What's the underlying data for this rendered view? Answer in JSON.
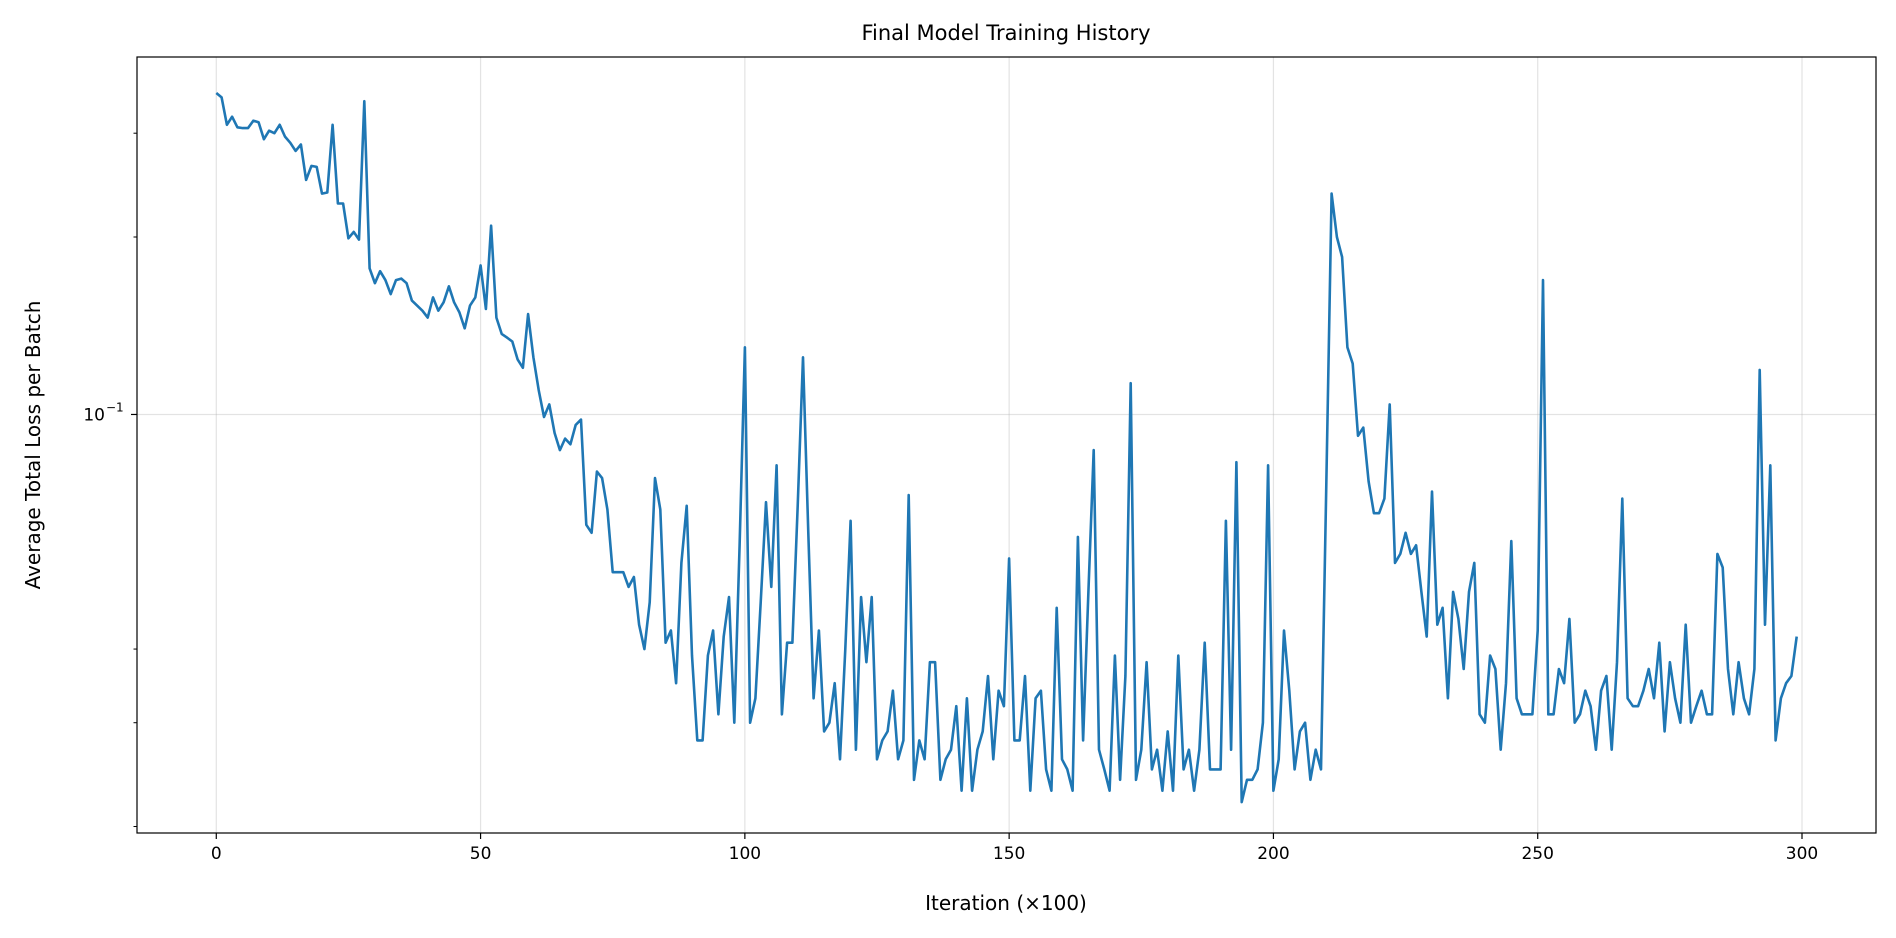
{
  "chart_data": {
    "type": "line",
    "title": "Final Model Training History",
    "xlabel": "Iteration (×100)",
    "ylabel": "Average Total Loss per Batch",
    "xlim": [
      -15,
      314
    ],
    "ylim": [
      0.0195,
      0.404
    ],
    "yscale": "log",
    "grid": true,
    "x_ticks": [
      0,
      50,
      100,
      150,
      200,
      250,
      300
    ],
    "x_tick_labels": [
      "0",
      "50",
      "100",
      "150",
      "200",
      "250",
      "300"
    ],
    "y_major_ticks": [
      {
        "value": 0.1,
        "base": "10",
        "exp": "−1"
      }
    ],
    "y_minor_ticks": [
      0.02,
      0.03,
      0.04,
      0.2,
      0.3
    ],
    "line_color": "#1f77b4",
    "series": [
      {
        "name": "loss",
        "x_start": 0,
        "x_step": 1,
        "values": [
          0.351,
          0.345,
          0.31,
          0.32,
          0.307,
          0.306,
          0.306,
          0.315,
          0.313,
          0.293,
          0.303,
          0.3,
          0.31,
          0.296,
          0.289,
          0.28,
          0.287,
          0.25,
          0.264,
          0.263,
          0.237,
          0.238,
          0.31,
          0.228,
          0.228,
          0.199,
          0.204,
          0.198,
          0.34,
          0.177,
          0.167,
          0.175,
          0.169,
          0.16,
          0.169,
          0.17,
          0.167,
          0.156,
          0.153,
          0.15,
          0.146,
          0.158,
          0.15,
          0.155,
          0.165,
          0.155,
          0.149,
          0.14,
          0.153,
          0.158,
          0.179,
          0.151,
          0.209,
          0.146,
          0.137,
          0.135,
          0.133,
          0.124,
          0.12,
          0.148,
          0.125,
          0.11,
          0.099,
          0.104,
          0.093,
          0.087,
          0.091,
          0.089,
          0.096,
          0.098,
          0.065,
          0.063,
          0.08,
          0.078,
          0.069,
          0.054,
          0.054,
          0.054,
          0.051,
          0.053,
          0.044,
          0.04,
          0.048,
          0.078,
          0.069,
          0.041,
          0.043,
          0.035,
          0.056,
          0.07,
          0.039,
          0.028,
          0.028,
          0.039,
          0.043,
          0.031,
          0.042,
          0.049,
          0.03,
          0.06,
          0.13,
          0.03,
          0.033,
          0.048,
          0.071,
          0.051,
          0.082,
          0.031,
          0.041,
          0.041,
          0.07,
          0.125,
          0.063,
          0.033,
          0.043,
          0.029,
          0.03,
          0.035,
          0.026,
          0.04,
          0.066,
          0.027,
          0.049,
          0.038,
          0.049,
          0.026,
          0.028,
          0.029,
          0.034,
          0.026,
          0.028,
          0.073,
          0.024,
          0.028,
          0.026,
          0.038,
          0.038,
          0.024,
          0.026,
          0.027,
          0.032,
          0.023,
          0.033,
          0.023,
          0.027,
          0.029,
          0.036,
          0.026,
          0.034,
          0.032,
          0.057,
          0.028,
          0.028,
          0.036,
          0.023,
          0.033,
          0.034,
          0.025,
          0.023,
          0.047,
          0.026,
          0.025,
          0.023,
          0.062,
          0.028,
          0.05,
          0.087,
          0.027,
          0.025,
          0.023,
          0.039,
          0.024,
          0.036,
          0.113,
          0.024,
          0.027,
          0.038,
          0.025,
          0.027,
          0.023,
          0.029,
          0.023,
          0.039,
          0.025,
          0.027,
          0.023,
          0.027,
          0.041,
          0.025,
          0.025,
          0.025,
          0.066,
          0.027,
          0.083,
          0.022,
          0.024,
          0.024,
          0.025,
          0.03,
          0.082,
          0.023,
          0.026,
          0.043,
          0.034,
          0.025,
          0.029,
          0.03,
          0.024,
          0.027,
          0.025,
          0.076,
          0.237,
          0.2,
          0.185,
          0.13,
          0.122,
          0.092,
          0.095,
          0.077,
          0.068,
          0.068,
          0.072,
          0.104,
          0.056,
          0.058,
          0.063,
          0.058,
          0.06,
          0.05,
          0.042,
          0.074,
          0.044,
          0.047,
          0.033,
          0.05,
          0.045,
          0.037,
          0.05,
          0.056,
          0.031,
          0.03,
          0.039,
          0.037,
          0.027,
          0.035,
          0.061,
          0.033,
          0.031,
          0.031,
          0.031,
          0.043,
          0.169,
          0.031,
          0.031,
          0.037,
          0.035,
          0.045,
          0.03,
          0.031,
          0.034,
          0.032,
          0.027,
          0.034,
          0.036,
          0.027,
          0.038,
          0.072,
          0.033,
          0.032,
          0.032,
          0.034,
          0.037,
          0.033,
          0.041,
          0.029,
          0.038,
          0.033,
          0.03,
          0.044,
          0.03,
          0.032,
          0.034,
          0.031,
          0.031,
          0.058,
          0.055,
          0.037,
          0.031,
          0.038,
          0.033,
          0.031,
          0.037,
          0.119,
          0.044,
          0.082,
          0.028,
          0.033,
          0.035,
          0.036,
          0.042
        ]
      }
    ]
  }
}
